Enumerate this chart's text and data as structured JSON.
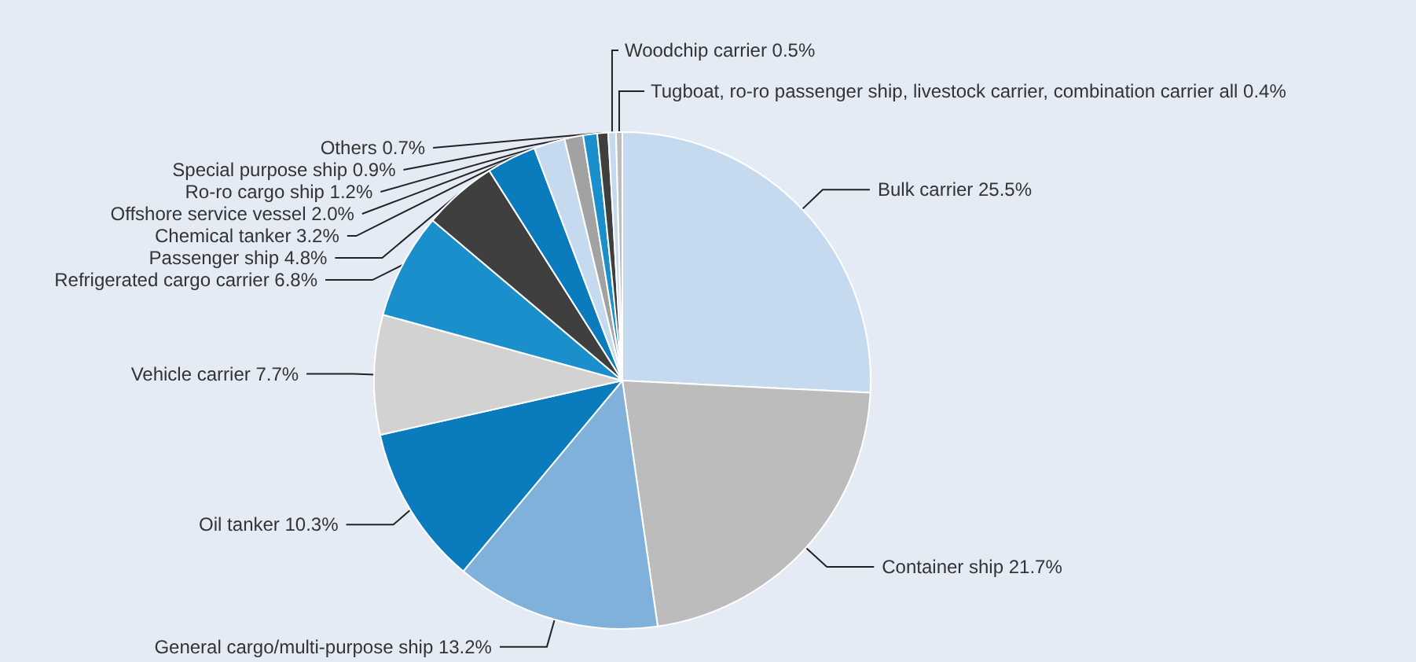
{
  "chart_data": {
    "type": "pie",
    "categories": [
      "Bulk carrier",
      "Container ship",
      "General cargo/multi-purpose ship",
      "Oil tanker",
      "Vehicle carrier",
      "Refrigerated cargo carrier",
      "Passenger ship",
      "Chemical tanker",
      "Offshore service vessel",
      "Ro-ro cargo ship",
      "Special purpose ship",
      "Others",
      "Woodchip carrier",
      "Tugboat, ro-ro passenger ship, livestock carrier, combination carrier"
    ],
    "values": [
      25.5,
      21.7,
      13.2,
      10.3,
      7.7,
      6.8,
      4.8,
      3.2,
      2.0,
      1.2,
      0.9,
      0.7,
      0.5,
      0.4
    ],
    "value_labels": [
      "25.5%",
      "21.7%",
      "13.2%",
      "10.3%",
      "7.7%",
      "6.8%",
      "4.8%",
      "3.2%",
      "2.0%",
      "1.2%",
      "0.9%",
      "0.7%",
      "0.5%",
      "all 0.4%"
    ],
    "colors": [
      "#c6daef",
      "#bcbcbc",
      "#80b1da",
      "#0a7bbd",
      "#d2d2d2",
      "#1a8fcb",
      "#3f3f3f",
      "#0a7bbd",
      "#c6daef",
      "#a2a2a2",
      "#1a8fcb",
      "#3f3f3f",
      "#c6daef",
      "#bcbcbc"
    ],
    "legend": false
  }
}
